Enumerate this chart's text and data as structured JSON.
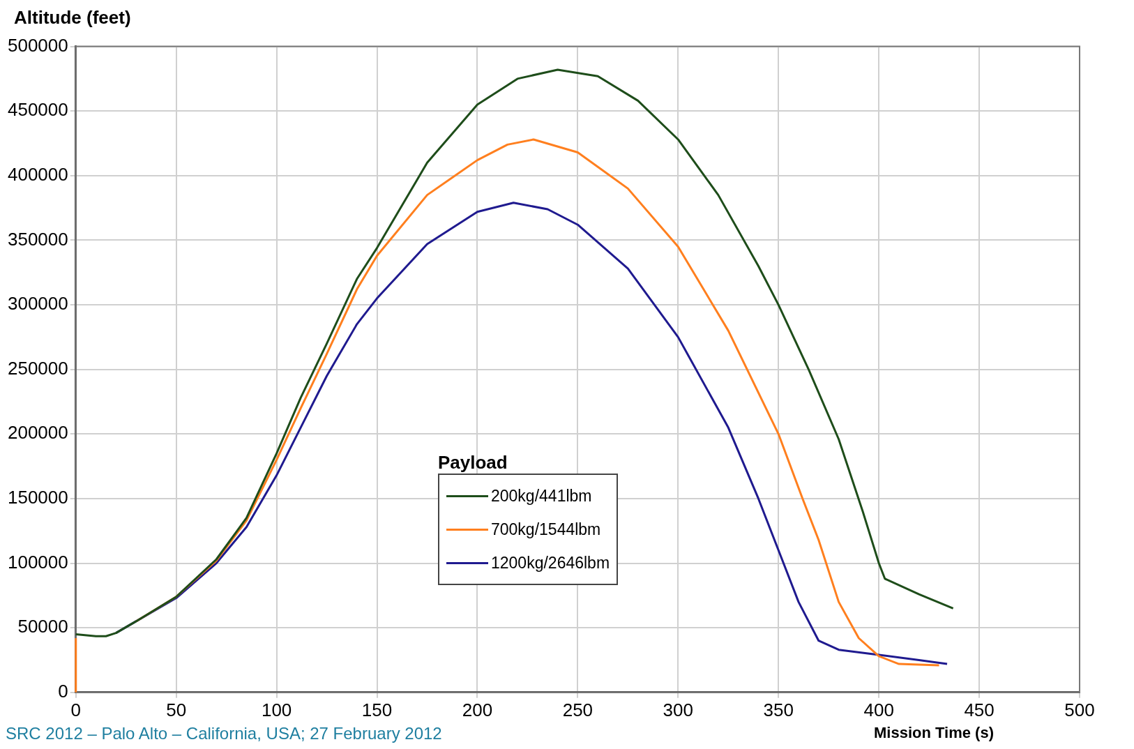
{
  "chart_data": {
    "type": "line",
    "xlabel": "Mission Time (s)",
    "ylabel": "Altitude (feet)",
    "legend_title": "Payload",
    "annotations": [
      "SRC 2012 – Palo Alto – California, USA; 27 February 2012"
    ],
    "xlim": [
      0,
      500
    ],
    "xticks": [
      0,
      50,
      100,
      150,
      200,
      250,
      300,
      350,
      400,
      450,
      500
    ],
    "ylim": [
      0,
      500000
    ],
    "yticks": [
      0,
      50000,
      100000,
      150000,
      200000,
      250000,
      300000,
      350000,
      400000,
      450000,
      500000
    ],
    "grid": true,
    "legend": "bottom",
    "marker": "none",
    "line_style": "solid",
    "series": [
      {
        "name": "200kg/441lbm",
        "color": "#1e4d1a",
        "x": [
          0,
          10,
          15,
          20,
          30,
          50,
          70,
          85,
          100,
          112,
          125,
          140,
          150,
          175,
          200,
          220,
          240,
          260,
          280,
          300,
          320,
          340,
          350,
          365,
          380,
          392,
          400,
          403,
          420,
          437
        ],
        "values": [
          45000,
          43500,
          43500,
          46000,
          55000,
          74000,
          103000,
          135000,
          185000,
          228000,
          270000,
          320000,
          344000,
          410000,
          455000,
          475000,
          482000,
          477000,
          458000,
          428000,
          385000,
          330000,
          300000,
          250000,
          196000,
          140000,
          100000,
          88000,
          76000,
          65000
        ]
      },
      {
        "name": "700kg/1544lbm",
        "color": "#ff7f1e",
        "x": [
          0,
          0,
          10,
          15,
          20,
          30,
          50,
          70,
          85,
          100,
          112,
          125,
          140,
          150,
          175,
          200,
          215,
          228,
          250,
          275,
          300,
          325,
          350,
          362,
          370,
          380,
          390,
          400,
          410,
          430
        ],
        "values": [
          0,
          42000,
          null,
          null,
          null,
          55000,
          74000,
          102000,
          133000,
          180000,
          220000,
          262000,
          312000,
          338000,
          385000,
          412000,
          424000,
          428000,
          418000,
          390000,
          345000,
          280000,
          200000,
          150000,
          118000,
          70000,
          42000,
          28000,
          22000,
          21000
        ]
      },
      {
        "name": "1200kg/2646lbm",
        "color": "#1f1a8f",
        "x": [
          20,
          30,
          50,
          70,
          85,
          100,
          112,
          125,
          140,
          150,
          175,
          200,
          218,
          235,
          250,
          275,
          300,
          325,
          340,
          350,
          360,
          370,
          380,
          400,
          420,
          434
        ],
        "values": [
          46000,
          55000,
          73000,
          100000,
          128000,
          168000,
          205000,
          245000,
          285000,
          305000,
          347000,
          372000,
          379000,
          374000,
          362000,
          328000,
          275000,
          205000,
          150000,
          110000,
          70000,
          40000,
          33000,
          29000,
          25000,
          22000
        ]
      }
    ]
  }
}
